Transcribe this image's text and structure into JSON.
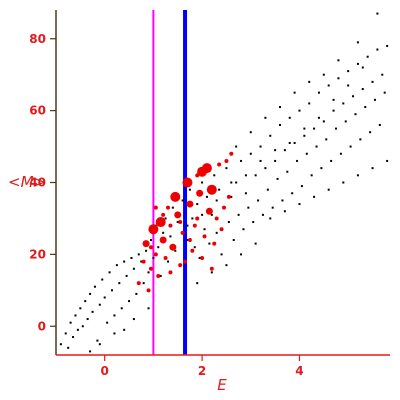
{
  "chart_data": {
    "type": "scatter",
    "xlabel": "E",
    "ylabel": "<M>",
    "xlim": [
      -1,
      5.9
    ],
    "ylim": [
      -8,
      88
    ],
    "xticks": [
      0,
      2,
      4
    ],
    "yticks": [
      0,
      20,
      40,
      60,
      80
    ],
    "grid": false,
    "colors": {
      "axis_text": "#e31a1a",
      "left_axis": "#4b3a1a",
      "bottom_axis": "#e31a1a",
      "vline_1": "#ff00ff",
      "vline_2": "#0000ff",
      "background_points": "#000000",
      "highlight_points": "#ee0000"
    },
    "vertical_lines": [
      {
        "x": 1.0,
        "color": "#ff00ff"
      },
      {
        "x": 1.65,
        "color": "#0000ff"
      }
    ],
    "series": [
      {
        "marker": "dot",
        "color": "#000000",
        "points": [
          [
            -0.9,
            -5
          ],
          [
            -0.8,
            -2
          ],
          [
            -0.75,
            -6
          ],
          [
            -0.7,
            1
          ],
          [
            -0.65,
            -3
          ],
          [
            -0.6,
            3
          ],
          [
            -0.55,
            -1
          ],
          [
            -0.5,
            5
          ],
          [
            -0.45,
            0
          ],
          [
            -0.4,
            7
          ],
          [
            -0.35,
            2
          ],
          [
            -0.3,
            9
          ],
          [
            -0.25,
            4
          ],
          [
            -0.2,
            11
          ],
          [
            -0.15,
            -4
          ],
          [
            -0.1,
            6
          ],
          [
            -0.05,
            13
          ],
          [
            0,
            8
          ],
          [
            0.05,
            1
          ],
          [
            0.1,
            15
          ],
          [
            0.15,
            10
          ],
          [
            0.2,
            3
          ],
          [
            0.25,
            17
          ],
          [
            0.3,
            12
          ],
          [
            0.35,
            5
          ],
          [
            0.4,
            18
          ],
          [
            0.45,
            14
          ],
          [
            0.5,
            7
          ],
          [
            0.55,
            19
          ],
          [
            0.6,
            16
          ],
          [
            0.65,
            9
          ],
          [
            0.7,
            20
          ],
          [
            0.75,
            18
          ],
          [
            0.8,
            12
          ],
          [
            0.85,
            21
          ],
          [
            0.9,
            15
          ],
          [
            0.95,
            24
          ],
          [
            1.0,
            19
          ],
          [
            1.05,
            28
          ],
          [
            1.1,
            22
          ],
          [
            1.15,
            14
          ],
          [
            1.2,
            26
          ],
          [
            1.25,
            30
          ],
          [
            1.3,
            18
          ],
          [
            1.35,
            25
          ],
          [
            1.4,
            33
          ],
          [
            1.45,
            21
          ],
          [
            1.5,
            29
          ],
          [
            1.55,
            17
          ],
          [
            1.6,
            35
          ],
          [
            1.7,
            24
          ],
          [
            1.75,
            38
          ],
          [
            1.8,
            30
          ],
          [
            1.85,
            22
          ],
          [
            1.9,
            34
          ],
          [
            1.95,
            19
          ],
          [
            2.0,
            40
          ],
          [
            2.05,
            27
          ],
          [
            2.1,
            36
          ],
          [
            2.15,
            23
          ],
          [
            2.2,
            31
          ],
          [
            2.25,
            42
          ],
          [
            2.3,
            26
          ],
          [
            2.35,
            38
          ],
          [
            2.4,
            20
          ],
          [
            2.45,
            33
          ],
          [
            2.5,
            44
          ],
          [
            2.55,
            29
          ],
          [
            2.6,
            36
          ],
          [
            2.65,
            24
          ],
          [
            2.7,
            40
          ],
          [
            2.75,
            31
          ],
          [
            2.8,
            46
          ],
          [
            2.85,
            27
          ],
          [
            2.9,
            37
          ],
          [
            2.95,
            33
          ],
          [
            3.0,
            48
          ],
          [
            3.05,
            29
          ],
          [
            3.1,
            42
          ],
          [
            3.15,
            35
          ],
          [
            3.2,
            50
          ],
          [
            3.25,
            31
          ],
          [
            3.3,
            44
          ],
          [
            3.35,
            38
          ],
          [
            3.4,
            53
          ],
          [
            3.45,
            33
          ],
          [
            3.5,
            46
          ],
          [
            3.55,
            41
          ],
          [
            3.6,
            56
          ],
          [
            3.65,
            35
          ],
          [
            3.7,
            49
          ],
          [
            3.75,
            43
          ],
          [
            3.8,
            58
          ],
          [
            3.85,
            37
          ],
          [
            3.9,
            51
          ],
          [
            3.95,
            46
          ],
          [
            4.0,
            60
          ],
          [
            4.05,
            39
          ],
          [
            4.1,
            53
          ],
          [
            4.15,
            48
          ],
          [
            4.2,
            62
          ],
          [
            4.25,
            42
          ],
          [
            4.3,
            55
          ],
          [
            4.35,
            50
          ],
          [
            4.4,
            65
          ],
          [
            4.45,
            44
          ],
          [
            4.5,
            57
          ],
          [
            4.55,
            52
          ],
          [
            4.6,
            67
          ],
          [
            4.65,
            46
          ],
          [
            4.7,
            60
          ],
          [
            4.75,
            55
          ],
          [
            4.8,
            69
          ],
          [
            4.85,
            48
          ],
          [
            4.9,
            62
          ],
          [
            4.95,
            57
          ],
          [
            5.0,
            71
          ],
          [
            5.05,
            50
          ],
          [
            5.1,
            64
          ],
          [
            5.15,
            59
          ],
          [
            5.2,
            73
          ],
          [
            5.25,
            52
          ],
          [
            5.3,
            66
          ],
          [
            5.35,
            61
          ],
          [
            5.4,
            75
          ],
          [
            5.45,
            54
          ],
          [
            5.5,
            68
          ],
          [
            5.55,
            63
          ],
          [
            5.6,
            77
          ],
          [
            5.65,
            56
          ],
          [
            5.7,
            70
          ],
          [
            5.75,
            65
          ],
          [
            5.8,
            78
          ],
          [
            5.6,
            87
          ],
          [
            5.3,
            72
          ],
          [
            5.0,
            67
          ],
          [
            4.7,
            63
          ],
          [
            4.4,
            58
          ],
          [
            4.1,
            55
          ],
          [
            3.8,
            51
          ],
          [
            3.5,
            49
          ],
          [
            3.2,
            46
          ],
          [
            2.9,
            42
          ],
          [
            2.6,
            40
          ],
          [
            2.3,
            35
          ],
          [
            2.0,
            31
          ],
          [
            1.7,
            28
          ],
          [
            3.3,
            58
          ],
          [
            3.6,
            61
          ],
          [
            3.0,
            54
          ],
          [
            2.7,
            50
          ],
          [
            4.8,
            74
          ],
          [
            5.2,
            79
          ],
          [
            4.5,
            70
          ],
          [
            3.9,
            65
          ],
          [
            4.2,
            68
          ],
          [
            3.4,
            30
          ],
          [
            3.7,
            32
          ],
          [
            4.0,
            34
          ],
          [
            4.3,
            36
          ],
          [
            4.6,
            38
          ],
          [
            4.9,
            40
          ],
          [
            5.2,
            42
          ],
          [
            5.5,
            44
          ],
          [
            5.8,
            46
          ],
          [
            2.8,
            20
          ],
          [
            3.1,
            23
          ],
          [
            2.5,
            17
          ],
          [
            2.2,
            15
          ],
          [
            1.9,
            12
          ],
          [
            -0.3,
            -7
          ],
          [
            -0.1,
            -5
          ],
          [
            0.2,
            -2
          ],
          [
            0.4,
            -1
          ],
          [
            0.6,
            2
          ],
          [
            0.9,
            5
          ]
        ]
      },
      {
        "marker": "filled-circle",
        "color": "#ee0000",
        "points": [
          [
            0.7,
            12,
            1
          ],
          [
            0.8,
            18,
            1
          ],
          [
            0.85,
            23,
            2
          ],
          [
            0.9,
            10,
            1
          ],
          [
            0.95,
            16,
            1
          ],
          [
            1.0,
            27,
            3
          ],
          [
            1.05,
            20,
            1
          ],
          [
            1.1,
            14,
            1
          ],
          [
            1.15,
            29,
            3
          ],
          [
            1.2,
            24,
            2
          ],
          [
            1.25,
            19,
            1
          ],
          [
            1.3,
            33,
            1
          ],
          [
            1.35,
            15,
            1
          ],
          [
            1.4,
            22,
            2
          ],
          [
            1.45,
            36,
            3
          ],
          [
            1.5,
            31,
            2
          ],
          [
            1.55,
            17,
            1
          ],
          [
            1.6,
            26,
            1
          ],
          [
            1.7,
            40,
            3
          ],
          [
            1.75,
            34,
            2
          ],
          [
            1.8,
            21,
            1
          ],
          [
            1.85,
            28,
            1
          ],
          [
            1.9,
            42,
            1
          ],
          [
            1.95,
            37,
            2
          ],
          [
            2.0,
            43,
            3
          ],
          [
            2.05,
            25,
            1
          ],
          [
            2.1,
            44,
            3
          ],
          [
            2.15,
            32,
            2
          ],
          [
            2.2,
            38,
            3
          ],
          [
            2.25,
            23,
            1
          ],
          [
            2.3,
            30,
            1
          ],
          [
            2.35,
            45,
            1
          ],
          [
            2.4,
            27,
            1
          ],
          [
            2.45,
            33,
            1
          ],
          [
            2.5,
            46,
            1
          ],
          [
            2.55,
            36,
            1
          ],
          [
            2.6,
            48,
            1
          ],
          [
            1.65,
            18,
            1
          ],
          [
            1.35,
            28,
            1
          ],
          [
            1.2,
            31,
            1
          ],
          [
            1.05,
            33,
            1
          ],
          [
            0.95,
            22,
            1
          ],
          [
            1.55,
            29,
            1
          ],
          [
            1.75,
            24,
            1
          ],
          [
            2.0,
            19,
            1
          ],
          [
            2.2,
            16,
            1
          ],
          [
            1.9,
            30,
            1
          ]
        ]
      }
    ]
  }
}
